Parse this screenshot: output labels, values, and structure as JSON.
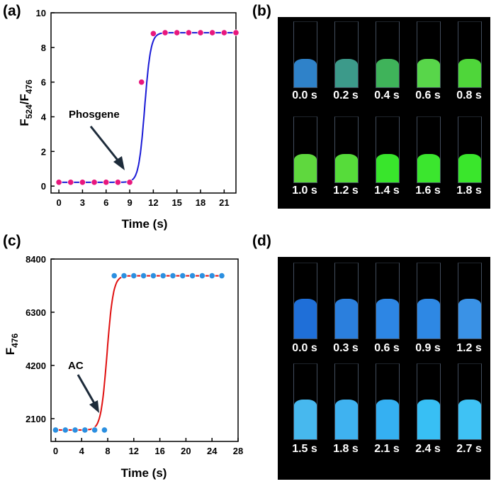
{
  "panels": {
    "a": "(a)",
    "b": "(b)",
    "c": "(c)",
    "d": "(d)"
  },
  "chart_data": [
    {
      "id": "a",
      "type": "line",
      "title": "",
      "xlabel": "Time (s)",
      "ylabel_main": "F",
      "ylabel_sub1": "524",
      "ylabel_slash": "/F",
      "ylabel_sub2": "476",
      "xlim": [
        -1,
        22.5
      ],
      "ylim": [
        -0.4,
        10
      ],
      "xticks": [
        0,
        3,
        6,
        9,
        12,
        15,
        18,
        21
      ],
      "yticks": [
        0,
        2,
        4,
        6,
        8,
        10
      ],
      "line_color": "#1a1ad6",
      "marker_color": "#e8177d",
      "annotation": "Phosgene",
      "fit": {
        "low": 0.22,
        "high": 8.85,
        "x0": 10.9,
        "k": 2.6
      },
      "points": [
        {
          "x": 0,
          "y": 0.22
        },
        {
          "x": 1.5,
          "y": 0.22
        },
        {
          "x": 3,
          "y": 0.22
        },
        {
          "x": 4.5,
          "y": 0.22
        },
        {
          "x": 6,
          "y": 0.22
        },
        {
          "x": 7.5,
          "y": 0.22
        },
        {
          "x": 9,
          "y": 0.22
        },
        {
          "x": 10.5,
          "y": 6.0
        },
        {
          "x": 12,
          "y": 8.8
        },
        {
          "x": 13.5,
          "y": 8.85
        },
        {
          "x": 15,
          "y": 8.85
        },
        {
          "x": 16.5,
          "y": 8.85
        },
        {
          "x": 18,
          "y": 8.85
        },
        {
          "x": 19.5,
          "y": 8.85
        },
        {
          "x": 21,
          "y": 8.85
        },
        {
          "x": 22.5,
          "y": 8.85
        }
      ]
    },
    {
      "id": "c",
      "type": "line",
      "title": "",
      "xlabel": "Time (s)",
      "ylabel_main": "F",
      "ylabel_sub": "476",
      "xlim": [
        -0.7,
        28
      ],
      "ylim": [
        1200,
        8400
      ],
      "xticks": [
        0,
        4,
        8,
        12,
        16,
        20,
        24,
        28
      ],
      "yticks": [
        2100,
        4200,
        6300,
        8400
      ],
      "line_color": "#e01010",
      "marker_color": "#2b8fe0",
      "annotation": "AC",
      "fit": {
        "low": 1650,
        "high": 7740,
        "x0": 7.9,
        "k": 2.1
      },
      "points": [
        {
          "x": 0,
          "y": 1650
        },
        {
          "x": 1.5,
          "y": 1650
        },
        {
          "x": 3,
          "y": 1650
        },
        {
          "x": 4.5,
          "y": 1650
        },
        {
          "x": 6,
          "y": 1650
        },
        {
          "x": 7.5,
          "y": 1650
        },
        {
          "x": 9,
          "y": 7740
        },
        {
          "x": 10.5,
          "y": 7740
        },
        {
          "x": 12,
          "y": 7740
        },
        {
          "x": 13.5,
          "y": 7740
        },
        {
          "x": 15,
          "y": 7740
        },
        {
          "x": 16.5,
          "y": 7740
        },
        {
          "x": 18,
          "y": 7740
        },
        {
          "x": 19.5,
          "y": 7740
        },
        {
          "x": 21,
          "y": 7740
        },
        {
          "x": 22.5,
          "y": 7740
        },
        {
          "x": 24,
          "y": 7740
        },
        {
          "x": 25.5,
          "y": 7740
        }
      ]
    }
  ],
  "photos": {
    "b": {
      "rows": [
        {
          "labels": [
            "0.0 s",
            "0.2 s",
            "0.4 s",
            "0.6 s",
            "0.8 s"
          ],
          "fills": [
            "#2f82c9",
            "#3c9a8a",
            "#3fb35a",
            "#58d64a",
            "#4fd63a"
          ]
        },
        {
          "labels": [
            "1.0 s",
            "1.2 s",
            "1.4 s",
            "1.6 s",
            "1.8 s"
          ],
          "fills": [
            "#5fd83e",
            "#56dc3a",
            "#39e52c",
            "#3be62e",
            "#3ae62c"
          ]
        }
      ]
    },
    "d": {
      "rows": [
        {
          "labels": [
            "0.0 s",
            "0.3 s",
            "0.6 s",
            "0.9 s",
            "1.2 s"
          ],
          "fills": [
            "#1f6fd8",
            "#2b7fdd",
            "#2d86e4",
            "#2e88e4",
            "#3a92e6"
          ]
        },
        {
          "labels": [
            "1.5 s",
            "1.8 s",
            "2.1 s",
            "2.4 s",
            "2.7 s"
          ],
          "fills": [
            "#47b8ee",
            "#3fb2f0",
            "#35b0f2",
            "#38bff4",
            "#3fc2f4"
          ]
        }
      ]
    }
  }
}
